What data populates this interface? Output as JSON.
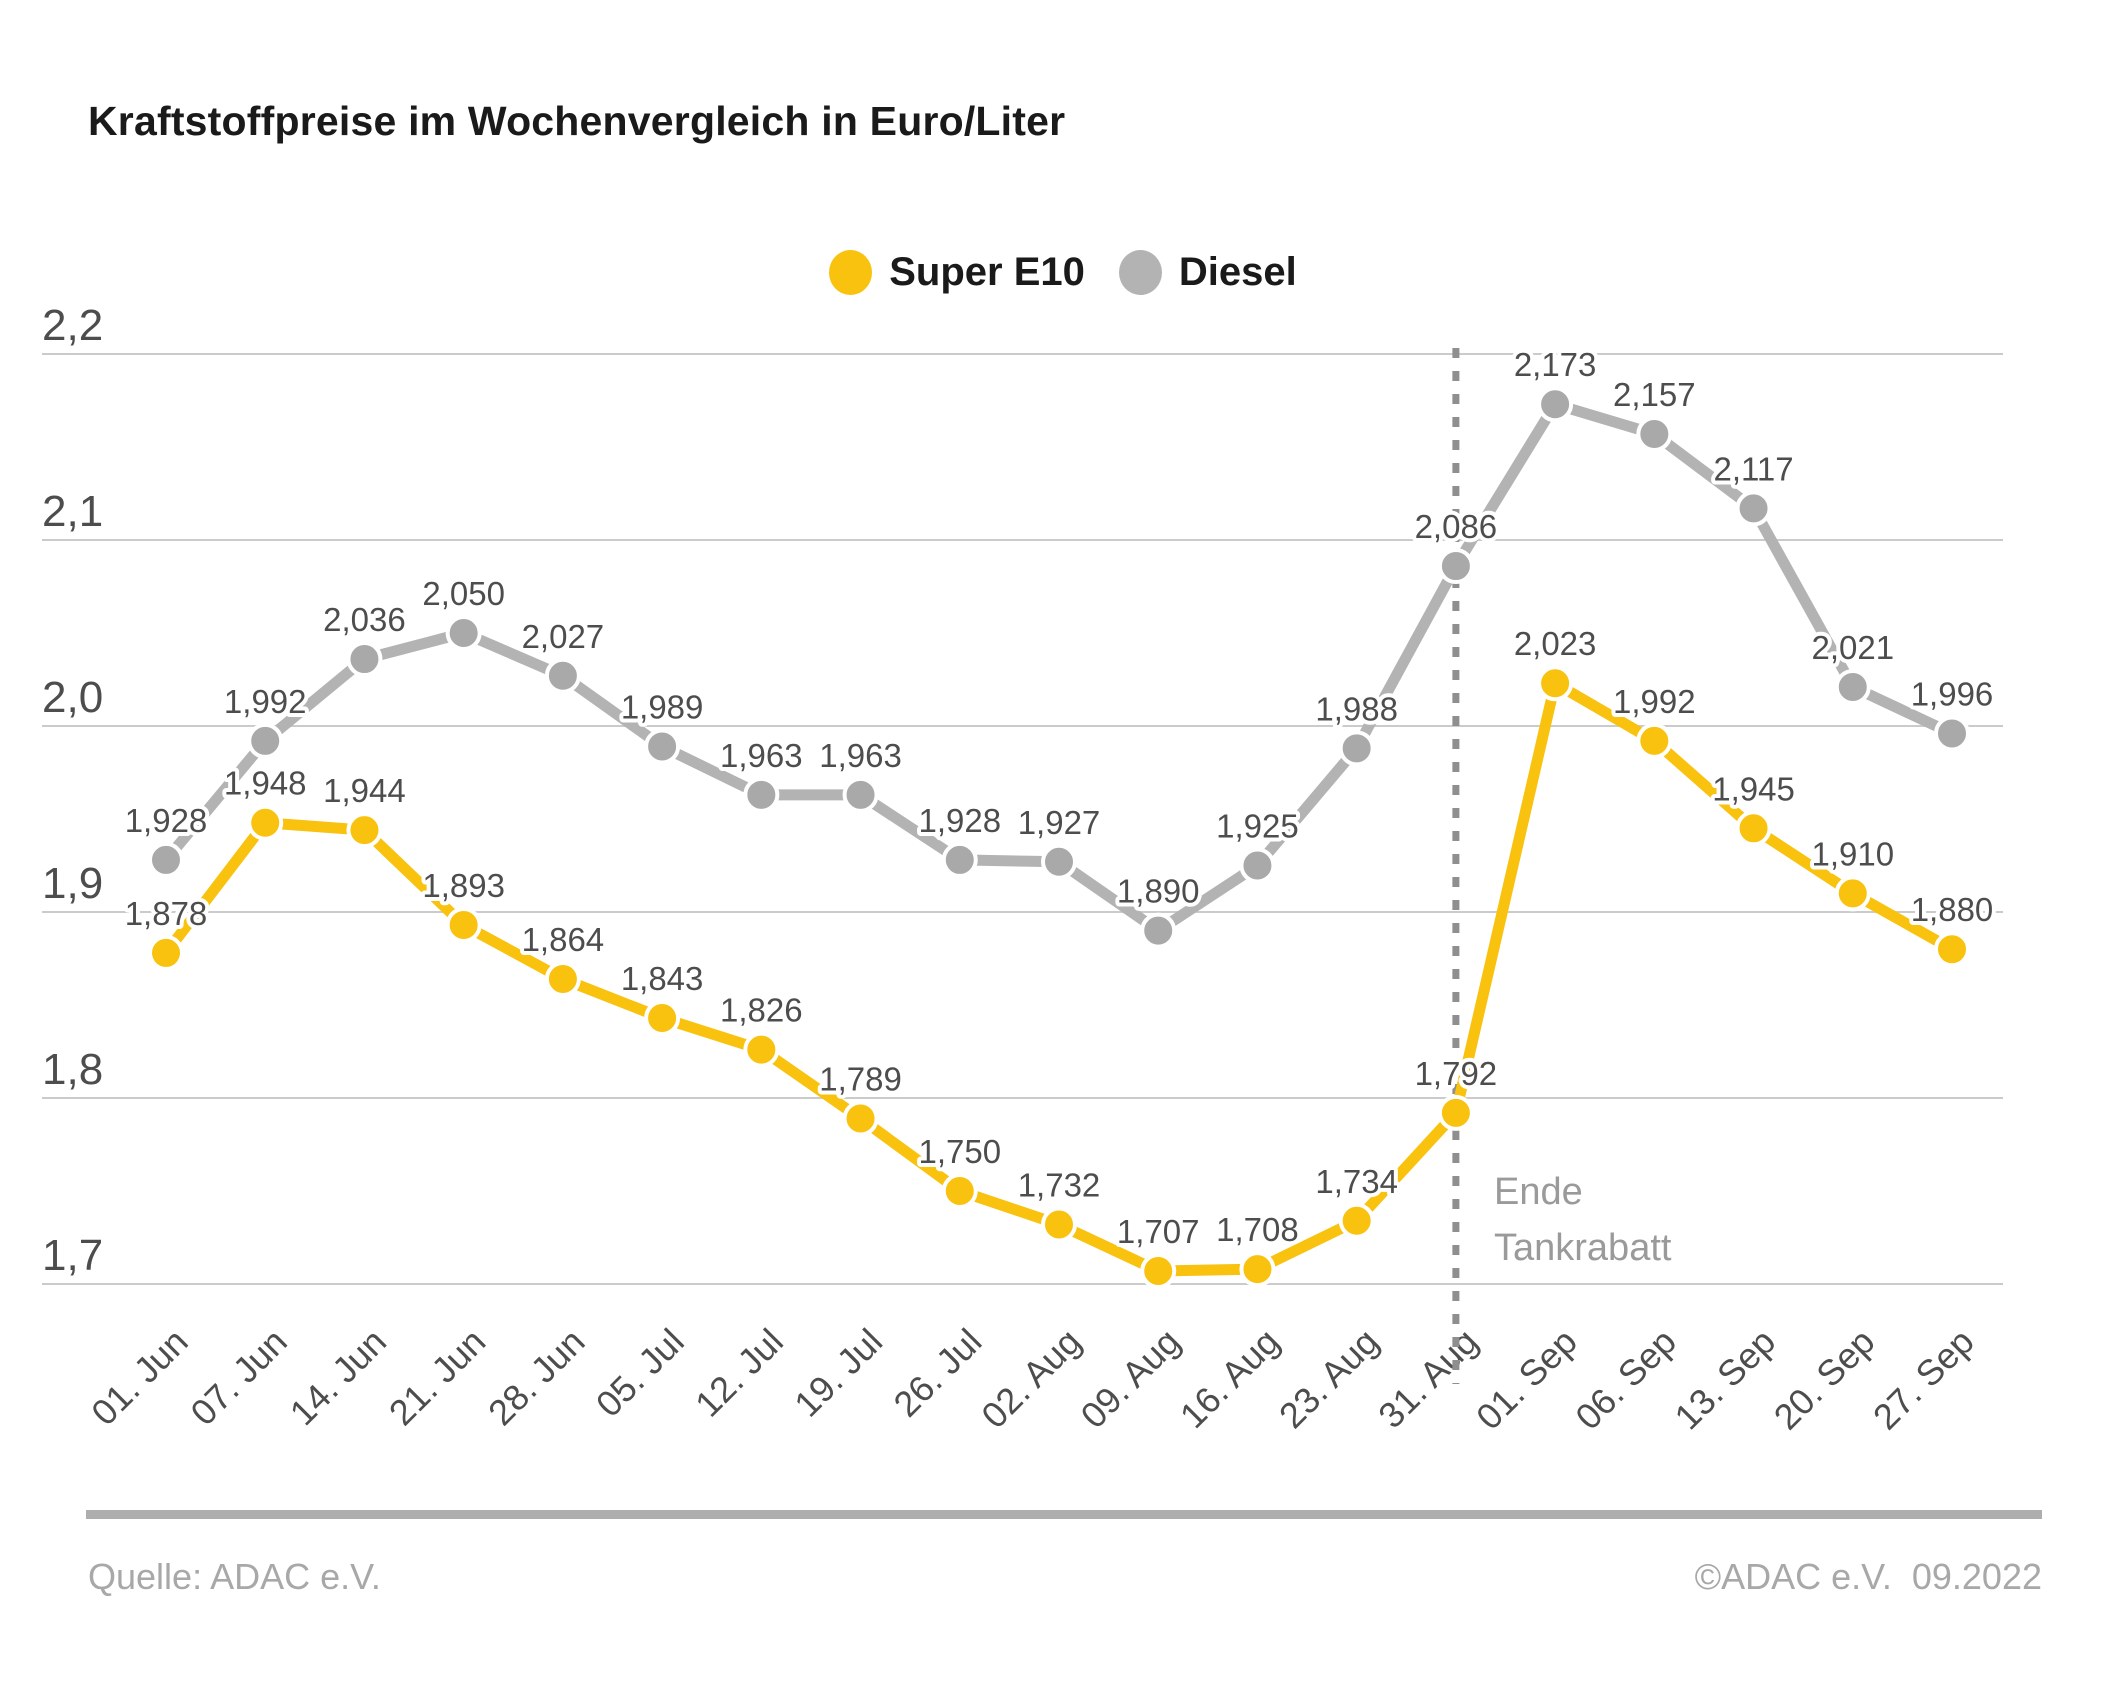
{
  "title": "Kraftstoffpreise im Wochenvergleich in Euro/Liter",
  "footer": {
    "source": "Quelle: ADAC e.V.",
    "copyright": "©ADAC e.V.  09.2022"
  },
  "colors": {
    "super_e10": "#F8C20E",
    "diesel_line": "#B3B3B3",
    "diesel_dot": "#A9A9A9",
    "grid": "#CBCBCB",
    "label_text": "#4D4D4D",
    "divider": "#8F8F8F",
    "annotation_text": "#9A9A9A"
  },
  "chart_data": {
    "type": "line",
    "title": "Kraftstoffpreise im Wochenvergleich in Euro/Liter",
    "xlabel": "",
    "ylabel": "Euro/Liter",
    "ylim": [
      1.7,
      2.2
    ],
    "grid": true,
    "legend_position": "top",
    "xlabel_rotation": -45,
    "categories": [
      "01. Jun",
      "07. Jun",
      "14. Jun",
      "21. Jun",
      "28. Jun",
      "05. Jul",
      "12. Jul",
      "19. Jul",
      "26. Jul",
      "02. Aug",
      "09. Aug",
      "16. Aug",
      "23. Aug",
      "31. Aug",
      "01. Sep",
      "06. Sep",
      "13. Sep",
      "20. Sep",
      "27. Sep"
    ],
    "yticks": [
      {
        "value": 2.2,
        "label": "2,2"
      },
      {
        "value": 2.1,
        "label": "2,1"
      },
      {
        "value": 2.0,
        "label": "2,0"
      },
      {
        "value": 1.9,
        "label": "1,9"
      },
      {
        "value": 1.8,
        "label": "1,8"
      },
      {
        "value": 1.7,
        "label": "1,7"
      }
    ],
    "series": [
      {
        "id": "diesel",
        "name": "Diesel",
        "color": "#B3B3B3",
        "dot_color": "#A9A9A9",
        "values": [
          1.928,
          1.992,
          2.036,
          2.05,
          2.027,
          1.989,
          1.963,
          1.963,
          1.928,
          1.927,
          1.89,
          1.925,
          1.988,
          2.086,
          2.173,
          2.157,
          2.117,
          2.021,
          1.996
        ],
        "labels": [
          "1,928",
          "1,992",
          "2,036",
          "2,050",
          "2,027",
          "1,989",
          "1,963",
          "1,963",
          "1,928",
          "1,927",
          "1,890",
          "1,925",
          "1,988",
          "2,086",
          "2,173",
          "2,157",
          "2,117",
          "2,021",
          "1,996"
        ]
      },
      {
        "id": "super-e10",
        "name": "Super E10",
        "color": "#F8C20E",
        "dot_color": "#F8C20E",
        "values": [
          1.878,
          1.948,
          1.944,
          1.893,
          1.864,
          1.843,
          1.826,
          1.789,
          1.75,
          1.732,
          1.707,
          1.708,
          1.734,
          1.792,
          2.023,
          1.992,
          1.945,
          1.91,
          1.88
        ],
        "labels": [
          "1,878",
          "1,948",
          "1,944",
          "1,893",
          "1,864",
          "1,843",
          "1,826",
          "1,789",
          "1,750",
          "1,732",
          "1,707",
          "1,708",
          "1,734",
          "1,792",
          "2,023",
          "1,992",
          "1,945",
          "1,910",
          "1,880"
        ]
      }
    ],
    "vline": {
      "index": 13,
      "category": "31. Aug",
      "label_lines": [
        "Ende",
        "Tankrabatt"
      ]
    }
  }
}
